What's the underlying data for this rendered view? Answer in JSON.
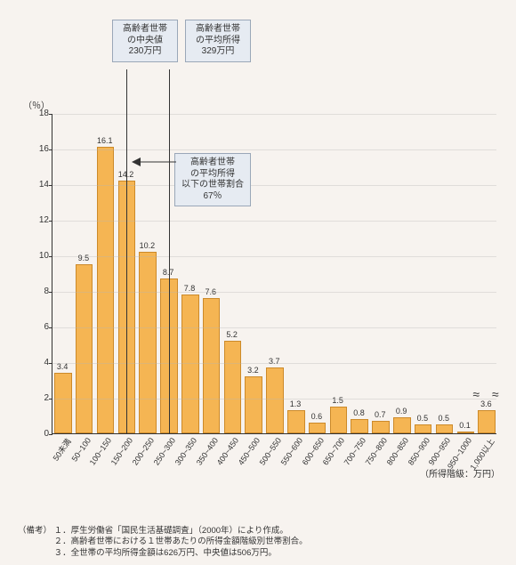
{
  "chart": {
    "type": "bar",
    "ylabel": "（％）",
    "xlabel": "（所得階級：万円）",
    "ylim": [
      0,
      18
    ],
    "ytick_step": 2,
    "bar_color": "#f5b553",
    "bar_border_color": "#cc8a2a",
    "background_color": "#f7f3ef",
    "grid_color": "rgba(180,180,180,0.35)",
    "axis_color": "#333333",
    "label_fontsize": 10,
    "tick_fontsize": 9,
    "bar_width": 0.82,
    "categories": [
      "50未満",
      "50~100",
      "100~150",
      "150~200",
      "200~250",
      "250~300",
      "300~350",
      "350~400",
      "400~450",
      "450~500",
      "500~550",
      "550~600",
      "600~650",
      "650~700",
      "700~750",
      "750~800",
      "800~850",
      "850~900",
      "900~950",
      "950~1000",
      "1,000以上"
    ],
    "values": [
      3.4,
      9.5,
      16.1,
      14.2,
      10.2,
      8.7,
      7.8,
      7.6,
      5.2,
      3.2,
      3.7,
      1.3,
      0.6,
      1.5,
      0.8,
      0.7,
      0.9,
      0.5,
      0.5,
      0.1,
      3.6
    ],
    "last_bar_broken": true
  },
  "callouts": {
    "median": {
      "line1": "高齢者世帯",
      "line2": "の中央値",
      "line3": "230万円"
    },
    "mean": {
      "line1": "高齢者世帯",
      "line2": "の平均所得",
      "line3": "329万円"
    },
    "below_mean": {
      "line1": "高齢者世帯",
      "line2": "の平均所得",
      "line3": "以下の世帯割合",
      "line4": "67％"
    }
  },
  "vlines": {
    "median_category_center": 3.5,
    "mean_category_center": 5.5
  },
  "notes_label": "（備考）",
  "notes": [
    "１．厚生労働省「国民生活基礎調査」（2000年）により作成。",
    "２．高齢者世帯における１世帯あたりの所得金額階級別世帯割合。",
    "３．全世帯の平均所得金額は626万円、中央値は506万円。"
  ]
}
